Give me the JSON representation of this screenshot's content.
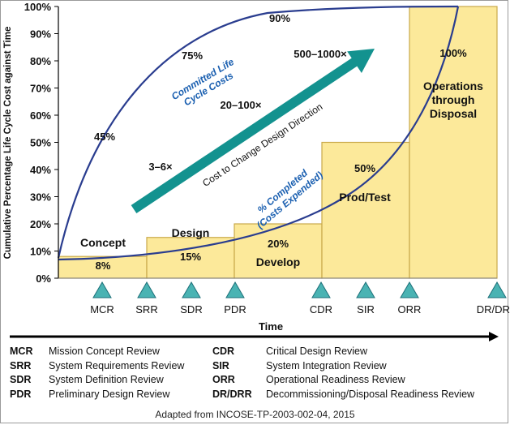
{
  "chart_data": {
    "type": "bar",
    "ylabel": "Cumulative Percentage Life Cycle Cost against Time",
    "xlabel": "Time",
    "ylim": [
      0,
      100
    ],
    "yticks": [
      "0%",
      "10%",
      "20%",
      "30%",
      "40%",
      "50%",
      "60%",
      "70%",
      "80%",
      "90%",
      "100%"
    ],
    "phases": [
      {
        "name": "Concept",
        "value": 8,
        "label": "8%"
      },
      {
        "name": "Design",
        "value": 15,
        "label": "15%"
      },
      {
        "name": "Develop",
        "value": 20,
        "label": "20%"
      },
      {
        "name": "Prod/Test",
        "value": 50,
        "label": "50%"
      },
      {
        "name": "Operations through Disposal",
        "value": 100,
        "label": "100%"
      }
    ],
    "committed_curve": {
      "name": "Committed Life Cycle Costs",
      "points": [
        [
          0,
          7
        ],
        [
          1,
          45
        ],
        [
          2,
          75
        ],
        [
          3,
          90
        ],
        [
          4,
          100
        ]
      ],
      "labels": [
        "45%",
        "75%",
        "90%"
      ]
    },
    "completed_curve": {
      "name": "% Completed (Costs Expended)"
    },
    "arrow": {
      "label": "Cost to Change Design Direction",
      "factors": [
        "3–6×",
        "20–100×",
        "500–1000×"
      ]
    },
    "milestones": [
      "MCR",
      "SRR",
      "SDR",
      "PDR",
      "CDR",
      "SIR",
      "ORR",
      "DR/DRR"
    ],
    "colors": {
      "bar_fill": "#fce99a",
      "bar_stroke": "#c9a94a",
      "curve": "#2a3d8f",
      "arrow": "#13928f",
      "triangle": "#4ab3b3",
      "curve_label": "#1a5fb0"
    }
  },
  "legend": {
    "left": [
      {
        "abbr": "MCR",
        "text": "Mission Concept Review"
      },
      {
        "abbr": "SRR",
        "text": "System Requirements Review"
      },
      {
        "abbr": "SDR",
        "text": "System Definition Review"
      },
      {
        "abbr": "PDR",
        "text": "Preliminary Design Review"
      }
    ],
    "right": [
      {
        "abbr": "CDR",
        "text": "Critical Design Review"
      },
      {
        "abbr": "SIR",
        "text": "System Integration Review"
      },
      {
        "abbr": "ORR",
        "text": "Operational Readiness Review"
      },
      {
        "abbr": "DR/DRR",
        "text": "Decommissioning/Disposal Readiness Review"
      }
    ]
  },
  "source": "Adapted from INCOSE-TP-2003-002-04, 2015"
}
